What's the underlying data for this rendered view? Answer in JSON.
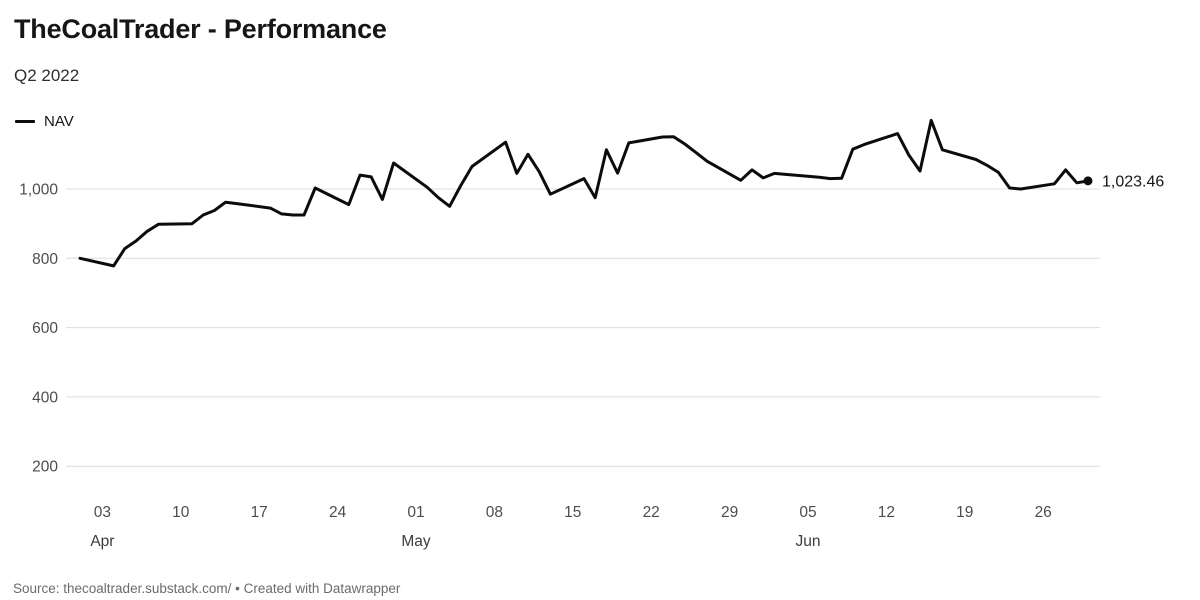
{
  "header": {
    "title": "TheCoalTrader - Performance",
    "subtitle": "Q2 2022"
  },
  "legend": {
    "items": [
      {
        "label": "NAV",
        "color": "#0c0c0c"
      }
    ]
  },
  "chart_data": {
    "type": "line",
    "title": "TheCoalTrader - Performance",
    "subtitle": "Q2 2022",
    "legend_position": "top-left",
    "grid": "horizontal",
    "x_domain": [
      "2022-04-01",
      "2022-06-30"
    ],
    "ylim": [
      100,
      1210
    ],
    "y_ticks": [
      {
        "value": 200,
        "label": "200"
      },
      {
        "value": 400,
        "label": "400"
      },
      {
        "value": 600,
        "label": "600"
      },
      {
        "value": 800,
        "label": "800"
      },
      {
        "value": 1000,
        "label": "1,000"
      }
    ],
    "x_ticks": [
      {
        "date": "2022-04-03",
        "label": "03",
        "month": "Apr"
      },
      {
        "date": "2022-04-10",
        "label": "10"
      },
      {
        "date": "2022-04-17",
        "label": "17"
      },
      {
        "date": "2022-04-24",
        "label": "24"
      },
      {
        "date": "2022-05-01",
        "label": "01",
        "month": "May"
      },
      {
        "date": "2022-05-08",
        "label": "08"
      },
      {
        "date": "2022-05-15",
        "label": "15"
      },
      {
        "date": "2022-05-22",
        "label": "22"
      },
      {
        "date": "2022-05-29",
        "label": "29"
      },
      {
        "date": "2022-06-05",
        "label": "05",
        "month": "Jun"
      },
      {
        "date": "2022-06-12",
        "label": "12"
      },
      {
        "date": "2022-06-19",
        "label": "19"
      },
      {
        "date": "2022-06-26",
        "label": "26"
      }
    ],
    "series": [
      {
        "name": "NAV",
        "color": "#0c0c0c",
        "end_label": "1,023.46",
        "end_value": 1023.46,
        "points": [
          [
            "2022-04-01",
            800
          ],
          [
            "2022-04-04",
            778
          ],
          [
            "2022-04-05",
            828
          ],
          [
            "2022-04-06",
            850
          ],
          [
            "2022-04-07",
            878
          ],
          [
            "2022-04-08",
            898
          ],
          [
            "2022-04-11",
            900
          ],
          [
            "2022-04-12",
            925
          ],
          [
            "2022-04-13",
            938
          ],
          [
            "2022-04-14",
            962
          ],
          [
            "2022-04-15",
            958
          ],
          [
            "2022-04-18",
            945
          ],
          [
            "2022-04-19",
            928
          ],
          [
            "2022-04-20",
            925
          ],
          [
            "2022-04-21",
            925
          ],
          [
            "2022-04-22",
            1003
          ],
          [
            "2022-04-25",
            955
          ],
          [
            "2022-04-26",
            1040
          ],
          [
            "2022-04-27",
            1035
          ],
          [
            "2022-04-28",
            970
          ],
          [
            "2022-04-29",
            1075
          ],
          [
            "2022-05-02",
            1005
          ],
          [
            "2022-05-03",
            975
          ],
          [
            "2022-05-04",
            950
          ],
          [
            "2022-05-05",
            1010
          ],
          [
            "2022-05-06",
            1065
          ],
          [
            "2022-05-09",
            1135
          ],
          [
            "2022-05-10",
            1045
          ],
          [
            "2022-05-11",
            1100
          ],
          [
            "2022-05-12",
            1050
          ],
          [
            "2022-05-13",
            985
          ],
          [
            "2022-05-16",
            1030
          ],
          [
            "2022-05-17",
            975
          ],
          [
            "2022-05-18",
            1113
          ],
          [
            "2022-05-19",
            1046
          ],
          [
            "2022-05-20",
            1133
          ],
          [
            "2022-05-23",
            1150
          ],
          [
            "2022-05-24",
            1151
          ],
          [
            "2022-05-25",
            1130
          ],
          [
            "2022-05-26",
            1105
          ],
          [
            "2022-05-27",
            1080
          ],
          [
            "2022-05-30",
            1025
          ],
          [
            "2022-05-31",
            1055
          ],
          [
            "2022-06-01",
            1032
          ],
          [
            "2022-06-02",
            1045
          ],
          [
            "2022-06-03",
            1042
          ],
          [
            "2022-06-06",
            1034
          ],
          [
            "2022-06-07",
            1030
          ],
          [
            "2022-06-08",
            1031
          ],
          [
            "2022-06-09",
            1115
          ],
          [
            "2022-06-10",
            1128
          ],
          [
            "2022-06-13",
            1160
          ],
          [
            "2022-06-14",
            1098
          ],
          [
            "2022-06-15",
            1052
          ],
          [
            "2022-06-16",
            1198
          ],
          [
            "2022-06-17",
            1113
          ],
          [
            "2022-06-20",
            1085
          ],
          [
            "2022-06-21",
            1068
          ],
          [
            "2022-06-22",
            1048
          ],
          [
            "2022-06-23",
            1003
          ],
          [
            "2022-06-24",
            1000
          ],
          [
            "2022-06-27",
            1015
          ],
          [
            "2022-06-28",
            1055
          ],
          [
            "2022-06-29",
            1018
          ],
          [
            "2022-06-30",
            1023.46
          ]
        ]
      }
    ]
  },
  "footer": {
    "text": "Source: thecoaltrader.substack.com/ • Created with Datawrapper"
  }
}
